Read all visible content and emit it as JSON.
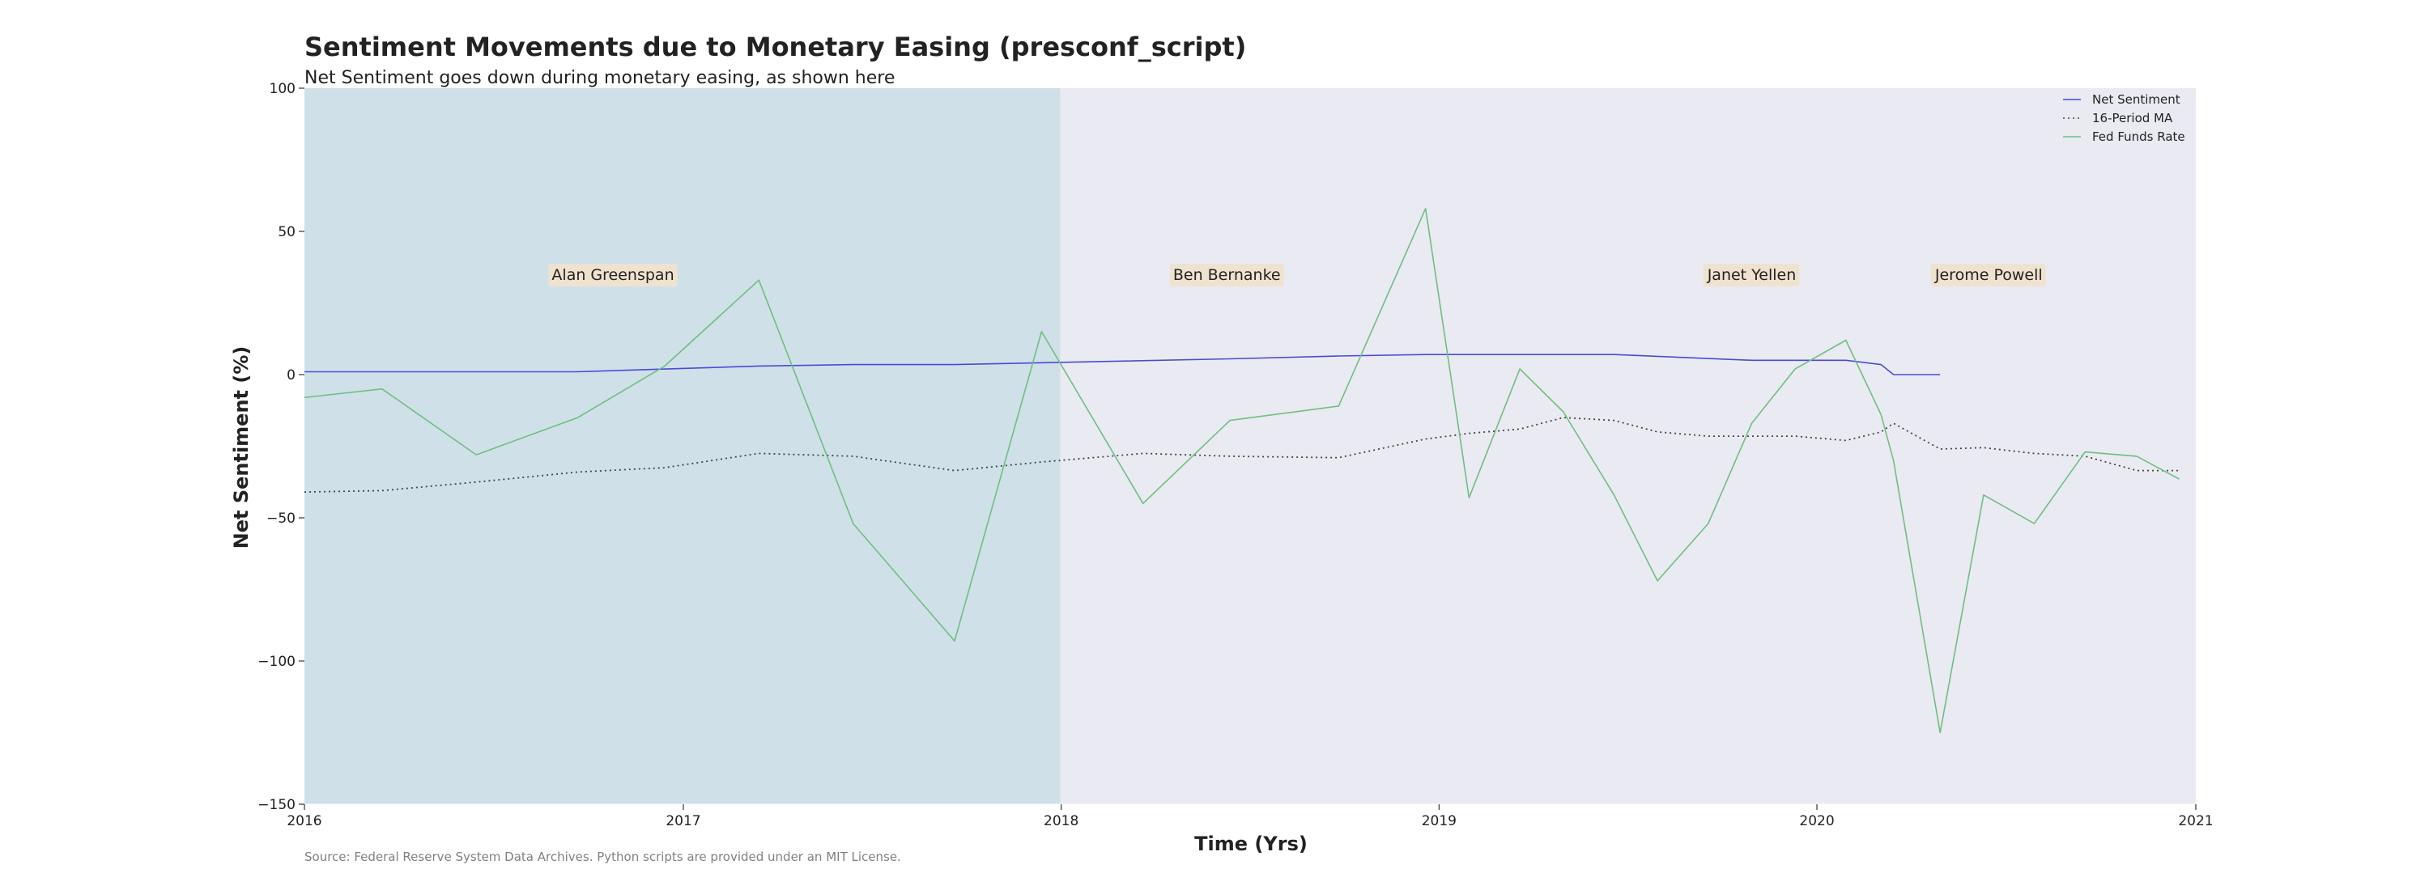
{
  "chart_data": {
    "type": "line",
    "title": "Sentiment Movements due to Monetary Easing (presconf_script)",
    "subtitle": "Net Sentiment goes down during monetary easing, as shown here",
    "xlabel": "Time (Yrs)",
    "ylabel": "Net Sentiment (%)",
    "source": "Source: Federal Reserve System Data Archives. Python scripts are provided under an MIT License.",
    "xlim": [
      "2016-01-01",
      "2021-01-01"
    ],
    "ylim": [
      -150,
      100
    ],
    "x_ticks": [
      {
        "value": "2016-01-01",
        "label": "2016"
      },
      {
        "value": "2017-01-01",
        "label": "2017"
      },
      {
        "value": "2018-01-01",
        "label": "2018"
      },
      {
        "value": "2019-01-01",
        "label": "2019"
      },
      {
        "value": "2020-01-01",
        "label": "2020"
      },
      {
        "value": "2021-01-01",
        "label": "2021"
      }
    ],
    "y_ticks": [
      {
        "value": 100,
        "label": "100"
      },
      {
        "value": 50,
        "label": "50"
      },
      {
        "value": 0,
        "label": "0"
      },
      {
        "value": -50,
        "label": "−50"
      },
      {
        "value": -100,
        "label": "−100"
      },
      {
        "value": -150,
        "label": "−150"
      }
    ],
    "grid": false,
    "legend_position": "top-right",
    "shaded_regions": [
      {
        "start": "2016-01-01",
        "end": "2017-12-31",
        "color": "#cfe0e9"
      }
    ],
    "plot_background": "#eaeaf2",
    "annotations": [
      {
        "text": "Alan Greenspan",
        "x": "2016-10-25",
        "y": 35
      },
      {
        "text": "Ben Bernanke",
        "x": "2018-06-10",
        "y": 35
      },
      {
        "text": "Janet Yellen",
        "x": "2019-10-30",
        "y": 35
      },
      {
        "text": "Jerome Powell",
        "x": "2020-06-15",
        "y": 35
      }
    ],
    "annotation_box_color": "#efe2cf",
    "series": [
      {
        "name": "Net Sentiment",
        "color": "#4a4ad6",
        "style": "solid",
        "points": [
          [
            "2016-01-01",
            1
          ],
          [
            "2016-09-20",
            1
          ],
          [
            "2017-03-15",
            3
          ],
          [
            "2017-06-14",
            3.5
          ],
          [
            "2017-09-20",
            3.5
          ],
          [
            "2018-01-31",
            4.5
          ],
          [
            "2018-06-13",
            5.5
          ],
          [
            "2018-09-26",
            6.5
          ],
          [
            "2018-12-19",
            7
          ],
          [
            "2019-06-19",
            7
          ],
          [
            "2019-10-30",
            5
          ],
          [
            "2020-01-29",
            5
          ],
          [
            "2020-03-03",
            3.5
          ],
          [
            "2020-03-15",
            0
          ],
          [
            "2020-04-29",
            0
          ]
        ]
      },
      {
        "name": "16-Period MA",
        "color": "#444444",
        "style": "dotted",
        "points": [
          [
            "2016-01-01",
            -41
          ],
          [
            "2016-03-16",
            -40.5
          ],
          [
            "2016-06-15",
            -37.5
          ],
          [
            "2016-09-21",
            -34
          ],
          [
            "2016-12-14",
            -32.5
          ],
          [
            "2017-03-15",
            -27.5
          ],
          [
            "2017-06-14",
            -28.5
          ],
          [
            "2017-09-20",
            -33.5
          ],
          [
            "2017-12-13",
            -30.5
          ],
          [
            "2018-03-21",
            -27.5
          ],
          [
            "2018-06-13",
            -28.5
          ],
          [
            "2018-09-26",
            -29
          ],
          [
            "2018-12-19",
            -22.5
          ],
          [
            "2019-01-30",
            -20.5
          ],
          [
            "2019-03-20",
            -19
          ],
          [
            "2019-05-01",
            -15
          ],
          [
            "2019-06-19",
            -16
          ],
          [
            "2019-07-31",
            -20
          ],
          [
            "2019-09-18",
            -21.5
          ],
          [
            "2019-10-30",
            -21.5
          ],
          [
            "2019-12-11",
            -21.5
          ],
          [
            "2020-01-29",
            -23
          ],
          [
            "2020-03-03",
            -20
          ],
          [
            "2020-03-15",
            -17
          ],
          [
            "2020-04-29",
            -26
          ],
          [
            "2020-06-10",
            -25.5
          ],
          [
            "2020-07-29",
            -27.5
          ],
          [
            "2020-09-16",
            -28.5
          ],
          [
            "2020-11-05",
            -33.5
          ],
          [
            "2020-12-16",
            -33.5
          ]
        ]
      },
      {
        "name": "Fed Funds Rate",
        "color": "#6fbf7f",
        "style": "solid",
        "points": [
          [
            "2016-01-01",
            -8
          ],
          [
            "2016-03-16",
            -5
          ],
          [
            "2016-06-15",
            -28
          ],
          [
            "2016-09-21",
            -15
          ],
          [
            "2016-12-14",
            3
          ],
          [
            "2017-03-15",
            33
          ],
          [
            "2017-06-14",
            -52
          ],
          [
            "2017-09-20",
            -93
          ],
          [
            "2017-12-13",
            15
          ],
          [
            "2018-03-21",
            -45
          ],
          [
            "2018-06-13",
            -16
          ],
          [
            "2018-09-26",
            -11
          ],
          [
            "2018-12-19",
            58
          ],
          [
            "2019-01-30",
            -43
          ],
          [
            "2019-03-20",
            2
          ],
          [
            "2019-05-01",
            -13
          ],
          [
            "2019-06-19",
            -42
          ],
          [
            "2019-07-31",
            -72
          ],
          [
            "2019-09-18",
            -52
          ],
          [
            "2019-10-30",
            -17
          ],
          [
            "2019-12-11",
            2
          ],
          [
            "2020-01-29",
            12
          ],
          [
            "2020-03-03",
            -14
          ],
          [
            "2020-03-15",
            -30
          ],
          [
            "2020-04-29",
            -125
          ],
          [
            "2020-06-10",
            -42
          ],
          [
            "2020-07-29",
            -52
          ],
          [
            "2020-09-16",
            -27
          ],
          [
            "2020-11-05",
            -28.5
          ],
          [
            "2020-12-16",
            -36.5
          ]
        ]
      }
    ]
  }
}
